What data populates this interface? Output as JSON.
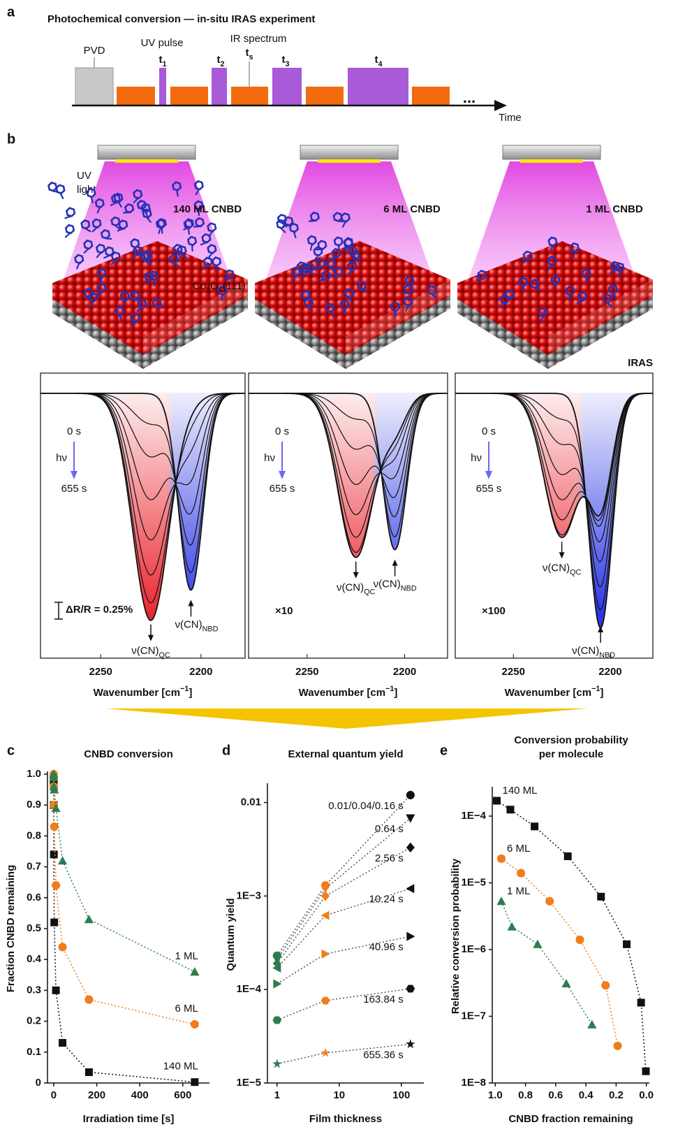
{
  "panel_a": {
    "label": "a",
    "title": "Photochemical conversion — in-situ IRAS experiment",
    "pvd": "PVD",
    "uv_pulse": "UV pulse",
    "ir_spectrum": "IR spectrum",
    "pulses": [
      [
        {
          "t": "t"
        },
        {
          "t": "1",
          "sub": true
        }
      ],
      [
        {
          "t": "t"
        },
        {
          "t": "2",
          "sub": true
        }
      ],
      [
        {
          "t": "t"
        },
        {
          "t": "3",
          "sub": true
        }
      ],
      [
        {
          "t": "t"
        },
        {
          "t": "4",
          "sub": true
        }
      ]
    ],
    "ts": [
      {
        "t": "t"
      },
      {
        "t": "s",
        "sub": true
      }
    ],
    "ellipsis": "...",
    "time": "Time"
  },
  "panel_b": {
    "label": "b",
    "uv_light": [
      "UV",
      "light"
    ],
    "substrate": [
      {
        "t": "Co"
      },
      {
        "t": "3",
        "sub": true
      },
      {
        "t": "O"
      },
      {
        "t": "4",
        "sub": true
      },
      {
        "t": "(111)"
      }
    ],
    "iras": "IRAS",
    "xlabel": [
      {
        "t": "Wavenumber [cm"
      },
      {
        "t": "−1",
        "sup": true
      },
      {
        "t": "]"
      }
    ],
    "xlim": [
      2280,
      2178
    ],
    "xticks": [
      2250,
      2200
    ],
    "ylim": [
      -1.05,
      0.08
    ],
    "qc_center": 2225,
    "nbd_center": 2205,
    "qc_width": 9,
    "nbd_width": 6,
    "start": "0 s",
    "hv": "hν",
    "end": "655 s",
    "qc_label": [
      {
        "t": "ν(CN)"
      },
      {
        "t": "QC",
        "sub": true
      }
    ],
    "nbd_label": [
      {
        "t": "ν(CN)"
      },
      {
        "t": "NBD",
        "sub": true
      }
    ],
    "spectra": [
      {
        "sample": "140 ML CNBD",
        "color": "#111111",
        "scale": "ΔR/R = 0.25%",
        "qc_depths": [
          0,
          0.12,
          0.25,
          0.42,
          0.58,
          0.72,
          0.83,
          0.9
        ],
        "nbd_depths": [
          0.78,
          0.7,
          0.58,
          0.44,
          0.3,
          0.17,
          0.07,
          0.02
        ]
      },
      {
        "sample": "6 ML CNBD",
        "color": "#f07d1a",
        "scale": "×10",
        "qc_depths": [
          0,
          0.1,
          0.22,
          0.36,
          0.48,
          0.57,
          0.63,
          0.65
        ],
        "nbd_depths": [
          0.62,
          0.56,
          0.47,
          0.38,
          0.29,
          0.21,
          0.16,
          0.13
        ]
      },
      {
        "sample": "1 ML CNBD",
        "color": "#2e7d4f",
        "scale": "×100",
        "qc_depths": [
          0,
          0.1,
          0.2,
          0.32,
          0.42,
          0.5,
          0.56,
          0.57
        ],
        "nbd_depths": [
          0.93,
          0.85,
          0.75,
          0.64,
          0.55,
          0.48,
          0.45,
          0.43
        ]
      }
    ]
  },
  "chart_data": [
    {
      "type": "scatter",
      "label": "c",
      "title": [
        "CNBD conversion"
      ],
      "xlabel": "Irradiation time [s]",
      "ylabel": "Fraction CNBD remaining",
      "xlim": [
        -29,
        724
      ],
      "xticks": [
        0,
        200,
        400,
        600
      ],
      "ylim": [
        0,
        1
      ],
      "yticks": [
        0,
        0.1,
        0.2,
        0.3,
        0.4,
        0.5,
        0.6,
        0.7,
        0.8,
        0.9,
        {
          "value": 1,
          "label": "1.0"
        }
      ],
      "fit_lines": true,
      "x": [
        0.01,
        0.04,
        0.16,
        0.64,
        2.56,
        10.24,
        40.96,
        163.84,
        655.36
      ],
      "series": [
        {
          "name": "140 ML",
          "color": "#111111",
          "marker": "square",
          "values": [
            0.99,
            0.97,
            0.9,
            0.74,
            0.52,
            0.3,
            0.13,
            0.035,
            0.003
          ]
        },
        {
          "name": "6 ML",
          "color": "#f07d1a",
          "marker": "circle",
          "values": [
            1,
            0.99,
            0.96,
            0.9,
            0.83,
            0.64,
            0.44,
            0.27,
            0.19
          ]
        },
        {
          "name": "1 ML",
          "color": "#2e7d4f",
          "marker": "triangle",
          "values": [
            1,
            1,
            0.99,
            0.96,
            0.95,
            0.89,
            0.72,
            0.53,
            0.36
          ]
        }
      ]
    },
    {
      "type": "scatter",
      "label": "d",
      "title": [
        "External quantum yield"
      ],
      "xlabel": "Film thickness",
      "ylabel": "Quantum yield",
      "log_x": true,
      "log_y": true,
      "xlim": [
        0.7,
        230
      ],
      "xticks": [
        1,
        10,
        100
      ],
      "ylim": [
        1e-05,
        0.015
      ],
      "yticks": [
        {
          "value": 1e-05,
          "label": "1E−5"
        },
        {
          "value": 0.0001,
          "label": "1E−4"
        },
        {
          "value": 0.001,
          "label": "1E−3"
        },
        0.01
      ],
      "fit_lines": true,
      "x": [
        1,
        6,
        140
      ],
      "point_colors": [
        "#2e7d4f",
        "#f07d1a",
        "#111111"
      ],
      "series": [
        {
          "name": "0.01/0.04/0.16 s",
          "marker": "circle",
          "values": [
            0.00023,
            0.0013,
            0.012
          ]
        },
        {
          "name": "0.64 s",
          "marker": "triangle-down",
          "values": [
            0.00021,
            0.0012,
            0.0068
          ]
        },
        {
          "name": "2.56 s",
          "marker": "diamond",
          "values": [
            0.00019,
            0.001,
            0.0033
          ]
        },
        {
          "name": "10.24 s",
          "marker": "triangle-left",
          "values": [
            0.00017,
            0.00062,
            0.0012
          ]
        },
        {
          "name": "40.96 s",
          "marker": "triangle-right",
          "values": [
            0.000115,
            0.00024,
            0.00037
          ]
        },
        {
          "name": "163.84 s",
          "marker": "hexagon",
          "values": [
            4.7e-05,
            7.6e-05,
            0.000102
          ]
        },
        {
          "name": "655.36 s",
          "marker": "star",
          "values": [
            1.6e-05,
            2.1e-05,
            2.6e-05
          ]
        }
      ]
    },
    {
      "type": "scatter",
      "label": "e",
      "title": [
        "Conversion probability",
        "per molecule"
      ],
      "xlabel": "CNBD fraction remaining",
      "ylabel": "Relative conversion probability",
      "log_y": true,
      "xlim": [
        1.02,
        -0.02
      ],
      "xticks": [
        {
          "value": 1,
          "label": "1.0"
        },
        0.8,
        0.6,
        0.4,
        0.2,
        {
          "value": 0,
          "label": "0.0"
        }
      ],
      "ylim": [
        1e-08,
        0.00025
      ],
      "yticks": [
        {
          "value": 1e-08,
          "label": "1E−8"
        },
        {
          "value": 1e-07,
          "label": "1E−7"
        },
        {
          "value": 1e-06,
          "label": "1E−6"
        },
        {
          "value": 1e-05,
          "label": "1E−5"
        },
        {
          "value": 0.0001,
          "label": "1E−4"
        }
      ],
      "fit_lines": true,
      "series": [
        {
          "name": "140 ML",
          "color": "#111111",
          "marker": "square",
          "x": [
            0.99,
            0.9,
            0.74,
            0.52,
            0.3,
            0.13,
            0.035,
            0.003
          ],
          "values": [
            0.00017,
            0.000125,
            7e-05,
            2.5e-05,
            6.2e-06,
            1.2e-06,
            1.6e-07,
            1.5e-08
          ]
        },
        {
          "name": "6 ML",
          "color": "#f07d1a",
          "marker": "circle",
          "x": [
            0.96,
            0.83,
            0.64,
            0.44,
            0.27,
            0.19
          ],
          "values": [
            2.3e-05,
            1.4e-05,
            5.3e-06,
            1.4e-06,
            2.9e-07,
            3.6e-08
          ]
        },
        {
          "name": "1 ML",
          "color": "#2e7d4f",
          "marker": "triangle",
          "x": [
            0.96,
            0.89,
            0.72,
            0.53,
            0.36
          ],
          "values": [
            5.3e-06,
            2.2e-06,
            1.2e-06,
            3.1e-07,
            7.5e-08
          ]
        }
      ]
    }
  ]
}
